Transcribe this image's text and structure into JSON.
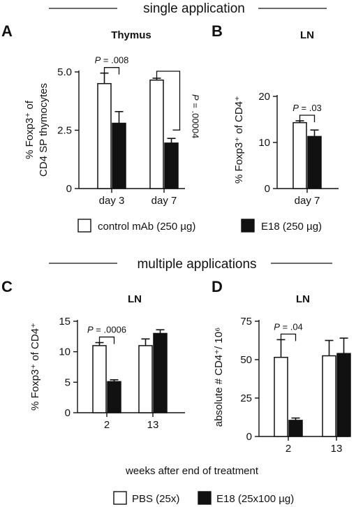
{
  "sections": {
    "single": "single application",
    "multiple": "multiple applications"
  },
  "legend_single": {
    "control": "control mAb (250 µg)",
    "e18": "E18 (250 µg)"
  },
  "legend_multiple": {
    "pbs": "PBS (25x)",
    "e18": "E18 (25x100 µg)"
  },
  "colors": {
    "open": "#ffffff",
    "filled": "#111111",
    "stroke": "#111111"
  },
  "chart_data": [
    {
      "id": "A",
      "type": "bar",
      "panel_label": "A",
      "title": "Thymus",
      "ylabel_lines": [
        "% Foxp3⁺ of",
        "CD4 SP thymocytes"
      ],
      "xlabel": "",
      "ylim": [
        0,
        5
      ],
      "yticks": [
        0,
        2.5,
        5
      ],
      "ytick_labels": [
        "0",
        "2.5",
        "5.0"
      ],
      "categories": [
        "day 3",
        "day 7"
      ],
      "series": [
        {
          "values": [
            4.5,
            4.65
          ],
          "errors": [
            0.45,
            0.08
          ],
          "fill": "open"
        },
        {
          "values": [
            2.8,
            1.95
          ],
          "errors": [
            0.5,
            0.2
          ],
          "fill": "filled"
        }
      ],
      "annotations": [
        {
          "category": 0,
          "p_prefix": "P",
          "p_value": " = .008",
          "vertical": false
        },
        {
          "category": 1,
          "p_prefix": "P",
          "p_value": " = .00004",
          "vertical": true
        }
      ]
    },
    {
      "id": "B",
      "type": "bar",
      "panel_label": "B",
      "title": "LN",
      "ylabel_lines": [
        "% Foxp3⁺ of CD4⁺"
      ],
      "xlabel": "",
      "ylim": [
        0,
        20
      ],
      "yticks": [
        0,
        10,
        20
      ],
      "ytick_labels": [
        "0",
        "10",
        "20"
      ],
      "categories": [
        "day 7"
      ],
      "series": [
        {
          "values": [
            14.3
          ],
          "errors": [
            0.4
          ],
          "fill": "open"
        },
        {
          "values": [
            11.3
          ],
          "errors": [
            1.4
          ],
          "fill": "filled"
        }
      ],
      "annotations": [
        {
          "category": 0,
          "p_prefix": "P",
          "p_value": " = .03",
          "vertical": false
        }
      ]
    },
    {
      "id": "C",
      "type": "bar",
      "panel_label": "C",
      "title": "LN",
      "ylabel_lines": [
        "% Foxp3⁺ of CD4⁺"
      ],
      "xlabel": "",
      "ylim": [
        0,
        15
      ],
      "yticks": [
        0,
        5,
        10,
        15
      ],
      "ytick_labels": [
        "0",
        "5",
        "10",
        "15"
      ],
      "categories": [
        "2",
        "13"
      ],
      "series": [
        {
          "values": [
            11.0,
            11.0
          ],
          "errors": [
            0.5,
            1.1
          ],
          "fill": "open"
        },
        {
          "values": [
            5.1,
            13.0
          ],
          "errors": [
            0.3,
            0.6
          ],
          "fill": "filled"
        }
      ],
      "annotations": [
        {
          "category": 0,
          "p_prefix": "P",
          "p_value": " = .0006",
          "vertical": false
        }
      ]
    },
    {
      "id": "D",
      "type": "bar",
      "panel_label": "D",
      "title": "LN",
      "ylabel_lines": [
        "absolute # CD4⁺/ 10⁶"
      ],
      "xlabel": "",
      "ylim": [
        0,
        75
      ],
      "yticks": [
        0,
        25,
        50,
        75
      ],
      "ytick_labels": [
        "0",
        "25",
        "50",
        "75"
      ],
      "categories": [
        "2",
        "13"
      ],
      "series": [
        {
          "values": [
            51.5,
            52.5
          ],
          "errors": [
            11.5,
            10.0
          ],
          "fill": "open"
        },
        {
          "values": [
            10.5,
            54.0
          ],
          "errors": [
            1.5,
            10.0
          ],
          "fill": "filled"
        }
      ],
      "annotations": [
        {
          "category": 0,
          "p_prefix": "P",
          "p_value": " = .04",
          "vertical": false
        }
      ]
    }
  ],
  "shared_xlabel": "weeks after end of treatment"
}
